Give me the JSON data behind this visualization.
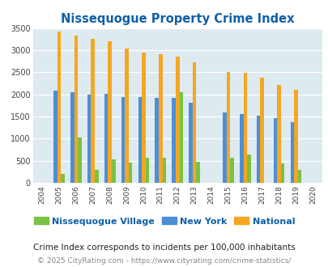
{
  "title": "Nissequogue Property Crime Index",
  "years": [
    2004,
    2005,
    2006,
    2007,
    2008,
    2009,
    2010,
    2011,
    2012,
    2013,
    2014,
    2015,
    2016,
    2017,
    2018,
    2019,
    2020
  ],
  "nissequogue": [
    0,
    200,
    1020,
    290,
    525,
    450,
    570,
    565,
    2050,
    480,
    0,
    570,
    640,
    0,
    440,
    300,
    0
  ],
  "new_york": [
    0,
    2090,
    2045,
    1990,
    2010,
    1940,
    1940,
    1930,
    1920,
    1820,
    0,
    1600,
    1560,
    1510,
    1460,
    1380,
    0
  ],
  "national": [
    0,
    3420,
    3330,
    3260,
    3210,
    3040,
    2950,
    2910,
    2860,
    2730,
    0,
    2500,
    2480,
    2380,
    2210,
    2110,
    0
  ],
  "nissequogue_color": "#7bc143",
  "new_york_color": "#4d8fd6",
  "national_color": "#f5a623",
  "bg_color": "#ddeaf0",
  "title_color": "#1060a8",
  "subtitle": "Crime Index corresponds to incidents per 100,000 inhabitants",
  "footer": "© 2025 CityRating.com - https://www.cityrating.com/crime-statistics/",
  "ylim": [
    0,
    3500
  ],
  "yticks": [
    0,
    500,
    1000,
    1500,
    2000,
    2500,
    3000,
    3500
  ]
}
